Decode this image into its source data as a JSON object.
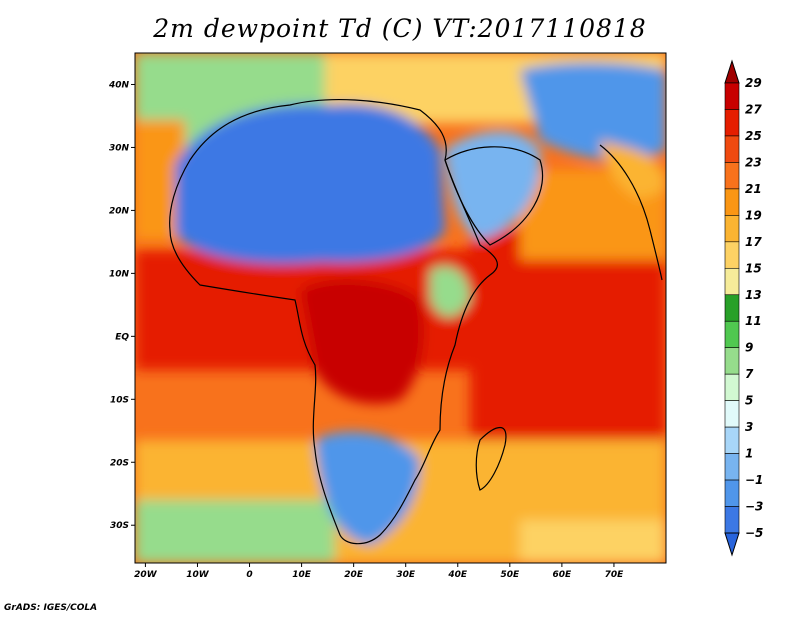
{
  "title": "2m dewpoint Td (C) VT:2017110818",
  "credit": "GrADS: IGES/COLA",
  "map": {
    "lon_range": [
      -22,
      80
    ],
    "lat_range": [
      -36,
      45
    ],
    "lon_ticks": [
      {
        "value": -20,
        "label": "20W"
      },
      {
        "value": -10,
        "label": "10W"
      },
      {
        "value": 0,
        "label": "0"
      },
      {
        "value": 10,
        "label": "10E"
      },
      {
        "value": 20,
        "label": "20E"
      },
      {
        "value": 30,
        "label": "30E"
      },
      {
        "value": 40,
        "label": "40E"
      },
      {
        "value": 50,
        "label": "50E"
      },
      {
        "value": 60,
        "label": "60E"
      },
      {
        "value": 70,
        "label": "70E"
      }
    ],
    "lat_ticks": [
      {
        "value": 40,
        "label": "40N"
      },
      {
        "value": 30,
        "label": "30N"
      },
      {
        "value": 20,
        "label": "20N"
      },
      {
        "value": 10,
        "label": "10N"
      },
      {
        "value": 0,
        "label": "EQ"
      },
      {
        "value": -10,
        "label": "10S"
      },
      {
        "value": -20,
        "label": "20S"
      },
      {
        "value": -30,
        "label": "30S"
      }
    ]
  },
  "colorbar": {
    "levels": [
      29,
      27,
      25,
      23,
      21,
      19,
      17,
      15,
      13,
      11,
      9,
      7,
      5,
      3,
      1,
      -1,
      -3,
      -5
    ],
    "labels": [
      "29",
      "27",
      "25",
      "23",
      "21",
      "19",
      "17",
      "15",
      "13",
      "11",
      "9",
      "7",
      "5",
      "3",
      "1",
      "−1",
      "−3",
      "−5"
    ],
    "colors": [
      "#a00000",
      "#c80000",
      "#e51e00",
      "#f04a10",
      "#f8721c",
      "#fa9614",
      "#fbb432",
      "#fdd264",
      "#f6ec9a",
      "#28a028",
      "#50c850",
      "#96dc8c",
      "#d2f8d2",
      "#e1fafa",
      "#a8d6f8",
      "#78b4f0",
      "#5096ea",
      "#3c78e4",
      "#2864dc"
    ]
  }
}
